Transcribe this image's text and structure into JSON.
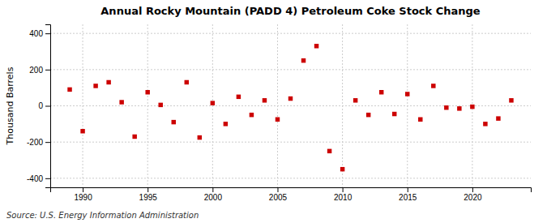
{
  "chart_data": {
    "type": "scatter",
    "title": "Annual Rocky Mountain (PADD 4) Petroleum Coke Stock Change",
    "ylabel": "Thousand Barrels",
    "source": "Source: U.S. Energy Information Administration",
    "x": [
      1989,
      1990,
      1991,
      1992,
      1993,
      1994,
      1995,
      1996,
      1997,
      1998,
      1999,
      2000,
      2001,
      2002,
      2003,
      2004,
      2005,
      2006,
      2007,
      2008,
      2009,
      2010,
      2011,
      2012,
      2013,
      2014,
      2015,
      2016,
      2017,
      2018,
      2019,
      2020,
      2021,
      2022,
      2023
    ],
    "values": [
      90,
      -140,
      110,
      130,
      20,
      -170,
      75,
      5,
      -90,
      130,
      -175,
      15,
      -100,
      50,
      -50,
      30,
      -75,
      40,
      250,
      330,
      -250,
      -350,
      30,
      -50,
      75,
      -45,
      65,
      -75,
      110,
      -10,
      -15,
      -5,
      -100,
      -70,
      30
    ],
    "color": "#cc0000",
    "marker": "square",
    "xlim": [
      1987.5,
      2024.5
    ],
    "ylim": [
      -450,
      450
    ],
    "xticks": [
      1990,
      1995,
      2000,
      2005,
      2010,
      2015,
      2020
    ],
    "yticks": [
      -400,
      -200,
      0,
      200,
      400
    ],
    "grid": true
  }
}
